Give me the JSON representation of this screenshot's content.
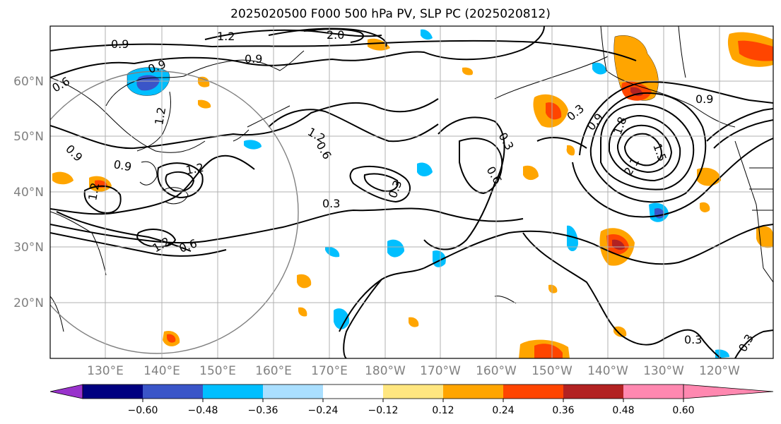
{
  "title": "2025020500 F000 500 hPa PV, SLP PC (2025020812)",
  "lat_labels": [
    "60°N",
    "50°N",
    "40°N",
    "30°N",
    "20°N"
  ],
  "lon_labels": [
    "130°E",
    "140°E",
    "150°E",
    "160°E",
    "170°E",
    "180°W",
    "170°W",
    "160°W",
    "150°W",
    "140°W",
    "130°W",
    "120°W"
  ],
  "colorbar": {
    "colors": [
      "#9932cc",
      "#000080",
      "#3a55c8",
      "#00bfff",
      "#aadfff",
      "#ffffff",
      "#ffe680",
      "#ffa500",
      "#ff4500",
      "#b22222",
      "#ff88b0"
    ],
    "tick_labels": [
      "−0.60",
      "−0.48",
      "−0.36",
      "−0.24",
      "−0.12",
      "0.12",
      "0.24",
      "0.36",
      "0.48",
      "0.60"
    ]
  },
  "contour_labels": [
    "0.9",
    "1.2",
    "0.9",
    "2.0",
    "0.6",
    "0.9",
    "0.9",
    "1.2",
    "0.9",
    "1.2",
    "1.2",
    "1.2",
    "0.6",
    "0.3",
    "1.2",
    "0.6",
    "0.3",
    "0.6",
    "0.3",
    "0.9",
    "1.8",
    "1.5",
    "2.1",
    "0.9",
    "0.3",
    "0.3",
    "0.3"
  ]
}
